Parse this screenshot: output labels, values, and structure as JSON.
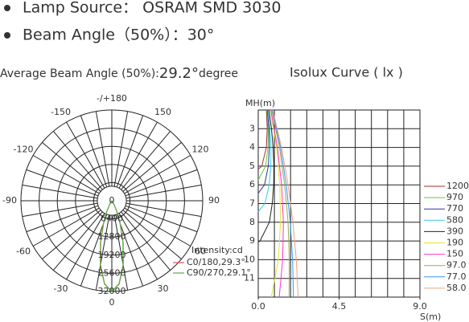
{
  "specs": [
    "Lamp Source：  OSRAM SMD 3030",
    "Beam Angle（50%）：30°"
  ],
  "summary": {
    "label": "Average Beam Angle (50%):",
    "value": "29.2°",
    "unit": "degree"
  },
  "chart_data": [
    {
      "type": "polar",
      "angles": [
        -40,
        -35,
        -30,
        -25,
        -20,
        -15,
        -10,
        -5,
        0,
        5,
        10,
        15,
        20,
        25,
        30,
        35,
        40
      ],
      "series": [
        {
          "name": "C0/180,29.3°",
          "color": "#e8534a",
          "values": [
            200,
            600,
            1700,
            4200,
            8700,
            15400,
            23100,
            29500,
            32000,
            29500,
            23100,
            15400,
            8700,
            4200,
            1700,
            600,
            200
          ]
        },
        {
          "name": "C90/270,29.1°",
          "color": "#55b043",
          "values": [
            180,
            560,
            1600,
            4000,
            8500,
            15100,
            22900,
            29400,
            32000,
            29400,
            22900,
            15100,
            8500,
            4000,
            1600,
            560,
            180
          ]
        }
      ],
      "rlim": [
        0,
        32000
      ],
      "rticks": [
        0,
        6400,
        12800,
        19200,
        25600,
        32000
      ],
      "angle_ticks": [
        {
          "value": 180,
          "label": "-/+180"
        },
        150,
        120,
        90,
        60,
        30,
        0,
        -30,
        -60,
        -90,
        -120,
        -150
      ],
      "r_label": "Intensity:cd"
    },
    {
      "type": "isolux",
      "title": "Isolux Curve ( lx )",
      "xlabel": "S(m)",
      "ylabel": "MH(m)",
      "xlim": [
        0,
        9
      ],
      "xticks": [
        {
          "value": 0,
          "label": "0.0"
        },
        {
          "value": 4.5,
          "label": "4.5"
        },
        {
          "value": 9,
          "label": "9.0"
        }
      ],
      "ylim": [
        2,
        12
      ],
      "yticks": [
        3,
        4,
        5,
        6,
        7,
        8,
        9,
        10,
        11
      ],
      "y_inverted": true,
      "series": [
        {
          "name": "1200",
          "color": "#a0302a",
          "y": [
            2,
            3,
            4,
            5,
            5.16
          ],
          "x": [
            0.45,
            0.5,
            0.45,
            0.2,
            0
          ]
        },
        {
          "name": "970",
          "color": "#66cc33",
          "y": [
            2,
            3,
            4,
            5,
            5.74
          ],
          "x": [
            0.48,
            0.55,
            0.54,
            0.41,
            0
          ]
        },
        {
          "name": "770",
          "color": "#333399",
          "y": [
            2,
            3,
            4,
            5,
            6,
            6.45
          ],
          "x": [
            0.51,
            0.6,
            0.62,
            0.56,
            0.35,
            0
          ]
        },
        {
          "name": "580",
          "color": "#33ccee",
          "y": [
            2,
            3,
            4,
            5,
            6,
            7,
            7.43
          ],
          "x": [
            0.54,
            0.66,
            0.71,
            0.7,
            0.61,
            0.37,
            0
          ]
        },
        {
          "name": "390",
          "color": "#222222",
          "y": [
            2,
            3,
            4,
            5,
            6,
            7,
            8,
            9,
            9.06
          ],
          "x": [
            0.59,
            0.74,
            0.83,
            0.87,
            0.86,
            0.78,
            0.62,
            0.1,
            0
          ]
        },
        {
          "name": "190",
          "color": "#e4e43a",
          "y": [
            2,
            4,
            6,
            8,
            10,
            12
          ],
          "x": [
            0.67,
            1.02,
            1.2,
            1.24,
            1.12,
            0.73
          ]
        },
        {
          "name": "150",
          "color": "#ff33cc",
          "y": [
            2,
            4,
            6,
            8,
            10,
            12
          ],
          "x": [
            0.7,
            1.07,
            1.3,
            1.4,
            1.36,
            1.17
          ]
        },
        {
          "name": "97.0",
          "color": "#99aa55",
          "y": [
            2,
            4,
            6,
            8,
            10,
            12
          ],
          "x": [
            0.75,
            1.18,
            1.47,
            1.66,
            1.73,
            1.72
          ]
        },
        {
          "name": "77.0",
          "color": "#3399ff",
          "y": [
            2,
            4,
            6,
            8,
            10,
            12
          ],
          "x": [
            0.78,
            1.24,
            1.56,
            1.78,
            1.91,
            1.96
          ]
        },
        {
          "name": "58.0",
          "color": "#f0a080",
          "y": [
            2,
            4,
            6,
            8,
            10,
            12
          ],
          "x": [
            0.81,
            1.3,
            1.66,
            1.93,
            2.12,
            2.22
          ]
        }
      ]
    }
  ]
}
